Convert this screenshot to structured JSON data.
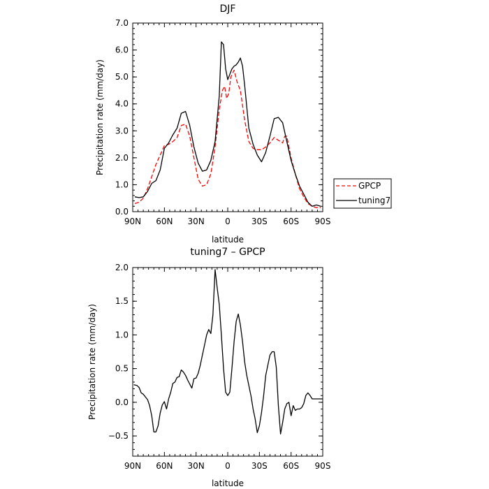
{
  "chart_data": [
    {
      "type": "line",
      "title": "DJF",
      "xlabel": "latitude",
      "ylabel": "Precipitation rate (mm/day)",
      "xlim": [
        90,
        -90
      ],
      "ylim": [
        0,
        7
      ],
      "x_ticks": [
        90,
        60,
        30,
        0,
        -30,
        -60,
        -90
      ],
      "x_tick_labels": [
        "90N",
        "60N",
        "30N",
        "0",
        "30S",
        "60S",
        "90S"
      ],
      "y_ticks": [
        0,
        1,
        2,
        3,
        4,
        5,
        6,
        7
      ],
      "y_tick_labels": [
        "0.0",
        "1.0",
        "2.0",
        "3.0",
        "4.0",
        "5.0",
        "6.0",
        "7.0"
      ],
      "grid": false,
      "legend_position": "right",
      "series": [
        {
          "name": "GPCP",
          "color": "#ff0000",
          "dash": "dashed",
          "x": [
            88,
            84,
            80,
            76,
            72,
            68,
            64,
            60,
            56,
            52,
            48,
            44,
            40,
            36,
            32,
            28,
            24,
            20,
            16,
            12,
            8,
            5,
            3,
            1,
            -1,
            -3,
            -6,
            -9,
            -12,
            -16,
            -20,
            -24,
            -28,
            -32,
            -36,
            -40,
            -44,
            -48,
            -52,
            -54,
            -56,
            -60,
            -64,
            -68,
            -72,
            -76,
            -80,
            -84,
            -88
          ],
          "y": [
            0.3,
            0.35,
            0.5,
            0.85,
            1.3,
            1.75,
            2.1,
            2.45,
            2.5,
            2.6,
            2.75,
            3.2,
            3.25,
            2.8,
            2.0,
            1.2,
            0.95,
            1.0,
            1.4,
            2.4,
            3.8,
            4.5,
            4.65,
            4.2,
            4.4,
            5.0,
            5.25,
            4.8,
            4.5,
            3.4,
            2.6,
            2.35,
            2.3,
            2.3,
            2.4,
            2.55,
            2.75,
            2.65,
            2.55,
            2.8,
            2.8,
            2.0,
            1.4,
            0.85,
            0.55,
            0.3,
            0.2,
            0.15,
            0.15
          ]
        },
        {
          "name": "tuning7",
          "color": "#000000",
          "dash": "solid",
          "x": [
            88,
            84,
            80,
            76,
            72,
            68,
            64,
            60,
            56,
            52,
            48,
            44,
            40,
            36,
            32,
            28,
            24,
            20,
            16,
            12,
            8,
            6,
            4,
            2,
            0,
            -2,
            -4,
            -6,
            -8,
            -10,
            -12,
            -14,
            -16,
            -20,
            -24,
            -28,
            -32,
            -36,
            -40,
            -44,
            -48,
            -52,
            -56,
            -60,
            -64,
            -68,
            -72,
            -76,
            -80,
            -84,
            -88
          ],
          "y": [
            0.55,
            0.52,
            0.55,
            0.75,
            1.05,
            1.15,
            1.55,
            2.35,
            2.55,
            2.85,
            3.1,
            3.65,
            3.72,
            3.2,
            2.4,
            1.8,
            1.5,
            1.55,
            1.9,
            2.6,
            4.3,
            6.3,
            6.2,
            5.3,
            4.9,
            5.1,
            5.3,
            5.4,
            5.45,
            5.55,
            5.7,
            5.4,
            4.7,
            3.1,
            2.5,
            2.1,
            1.85,
            2.2,
            2.8,
            3.45,
            3.5,
            3.3,
            2.6,
            1.9,
            1.4,
            0.95,
            0.65,
            0.35,
            0.2,
            0.25,
            0.2
          ]
        }
      ]
    },
    {
      "type": "line",
      "title": "tuning7 – GPCP",
      "xlabel": "latitude",
      "ylabel": "Precipitation rate (mm/day)",
      "xlim": [
        90,
        -90
      ],
      "ylim": [
        -0.8,
        2.0
      ],
      "x_ticks": [
        90,
        60,
        30,
        0,
        -30,
        -60,
        -90
      ],
      "x_tick_labels": [
        "90N",
        "60N",
        "30N",
        "0",
        "30S",
        "60S",
        "90S"
      ],
      "y_ticks": [
        -0.5,
        0,
        0.5,
        1.0,
        1.5,
        2.0
      ],
      "y_tick_labels": [
        "−0.5",
        "0.0",
        "0.5",
        "1.0",
        "1.5",
        "2.0"
      ],
      "grid": false,
      "series": [
        {
          "color": "#000000",
          "dash": "solid",
          "x": [
            89,
            86,
            84,
            82,
            80,
            78,
            76,
            74,
            72,
            70,
            68,
            66,
            64,
            62,
            60,
            58,
            56,
            54,
            52,
            50,
            48,
            46,
            44,
            42,
            40,
            38,
            36,
            34,
            32,
            30,
            28,
            26,
            24,
            22,
            20,
            18,
            16,
            14,
            12,
            10,
            8,
            6,
            4,
            2,
            0,
            -2,
            -4,
            -6,
            -8,
            -10,
            -12,
            -14,
            -16,
            -18,
            -20,
            -22,
            -24,
            -26,
            -28,
            -30,
            -32,
            -34,
            -36,
            -38,
            -40,
            -42,
            -44,
            -46,
            -48,
            -50,
            -52,
            -54,
            -56,
            -58,
            -60,
            -62,
            -64,
            -66,
            -68,
            -70,
            -72,
            -74,
            -76,
            -78,
            -80,
            -82,
            -84,
            -86,
            -88,
            -90
          ],
          "y": [
            0.26,
            0.25,
            0.22,
            0.14,
            0.12,
            0.08,
            0.04,
            -0.05,
            -0.2,
            -0.44,
            -0.44,
            -0.35,
            -0.16,
            -0.04,
            0.01,
            -0.1,
            0.05,
            0.15,
            0.28,
            0.3,
            0.37,
            0.38,
            0.48,
            0.45,
            0.4,
            0.33,
            0.27,
            0.21,
            0.35,
            0.36,
            0.43,
            0.55,
            0.7,
            0.85,
            1.0,
            1.08,
            1.02,
            1.3,
            1.97,
            1.7,
            1.45,
            1.0,
            0.5,
            0.15,
            0.1,
            0.15,
            0.5,
            0.9,
            1.2,
            1.31,
            1.15,
            0.9,
            0.6,
            0.4,
            0.25,
            0.1,
            -0.1,
            -0.25,
            -0.45,
            -0.35,
            -0.15,
            0.1,
            0.4,
            0.55,
            0.7,
            0.75,
            0.75,
            0.52,
            -0.05,
            -0.47,
            -0.3,
            -0.1,
            -0.02,
            0.0,
            -0.2,
            -0.05,
            -0.12,
            -0.1,
            -0.1,
            -0.08,
            -0.02,
            0.1,
            0.14,
            0.1,
            0.05,
            0.05,
            0.05,
            0.05,
            0.05,
            0.05
          ]
        }
      ]
    }
  ],
  "legend": {
    "items": [
      "GPCP",
      "tuning7"
    ]
  }
}
